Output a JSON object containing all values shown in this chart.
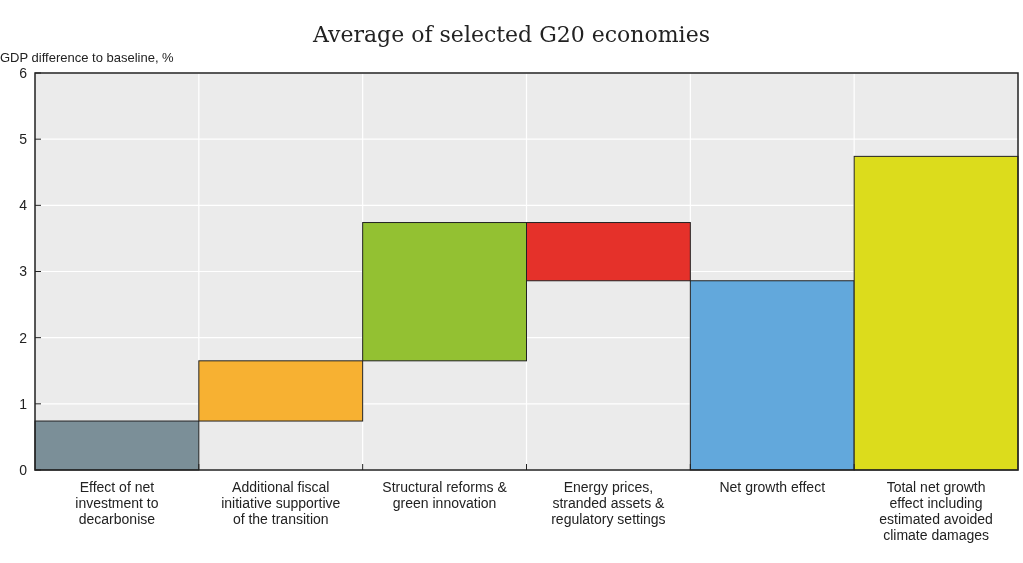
{
  "chart_data": {
    "type": "bar",
    "title": "Average of selected G20 economies",
    "ylabel": "GDP difference to baseline, %",
    "categories": [
      "Effect of net investment to decarbonise",
      "Additional fiscal initiative supportive of the transition",
      "Structural reforms & green innovation",
      "Energy prices, stranded assets & regulatory settings",
      "Net growth effect",
      "Total net growth effect including estimated avoided climate damages"
    ],
    "values": [
      0.74,
      0.91,
      2.09,
      -0.88,
      2.86,
      4.74
    ],
    "base": [
      0,
      0.74,
      1.65,
      3.74,
      0,
      0
    ],
    "colors": [
      "#7b8f98",
      "#f7b132",
      "#93c132",
      "#e5312a",
      "#62a8dc",
      "#dcdc1c"
    ],
    "ylim": [
      0,
      6
    ],
    "yticks": [
      0,
      1,
      2,
      3,
      4,
      5,
      6
    ],
    "grid": true
  }
}
